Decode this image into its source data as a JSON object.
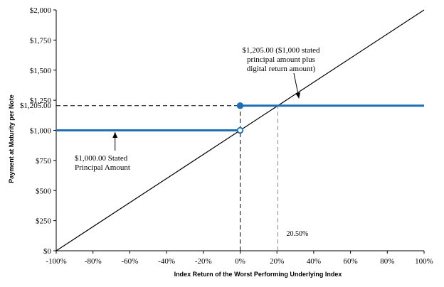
{
  "chart_data": {
    "type": "line",
    "title": "",
    "xlabel": "Index Return of the Worst Performing Underlying Index",
    "ylabel": "Payment at Maturity per Note",
    "xlim": [
      -100,
      100
    ],
    "ylim": [
      0,
      2000
    ],
    "grid": false,
    "x_ticks": [
      -100,
      -80,
      -60,
      -40,
      -20,
      0,
      20,
      40,
      60,
      80,
      100
    ],
    "x_tick_labels": [
      "-100%",
      "-80%",
      "-60%",
      "-40%",
      "-20%",
      "0%",
      "20%",
      "40%",
      "60%",
      "80%",
      "100%"
    ],
    "y_ticks": [
      0,
      250,
      500,
      750,
      1000,
      1250,
      1500,
      1750,
      2000
    ],
    "y_tick_labels": [
      "$0",
      "$250",
      "$500",
      "$750",
      "$1,000",
      "$1,250",
      "$1,500",
      "$1,750",
      "$2,000"
    ],
    "extra_y_tick": {
      "value": 1205,
      "label": "$1,205.00"
    },
    "series": [
      {
        "values": [
          {
            "x": -100,
            "y": 0
          },
          {
            "x": 100,
            "y": 2000
          }
        ],
        "color": "#000000"
      },
      {
        "values": [
          {
            "x": -100,
            "y": 1000
          },
          {
            "x": 0,
            "y": 1000
          }
        ],
        "color": "#1f6fb4"
      },
      {
        "values": [
          {
            "x": 0,
            "y": 1205
          },
          {
            "x": 100,
            "y": 1205
          }
        ],
        "color": "#1f6fb4"
      }
    ],
    "points": [
      {
        "x": 0,
        "y": 1205,
        "style": "filled",
        "color": "#1f6fb4"
      },
      {
        "x": 0,
        "y": 1000,
        "style": "open",
        "color": "#1f6fb4"
      }
    ],
    "reference_lines": [
      {
        "from": {
          "x": -100,
          "y": 1205
        },
        "to": {
          "x": 0,
          "y": 1205
        },
        "color": "#000000"
      },
      {
        "from": {
          "x": 0,
          "y": 0
        },
        "to": {
          "x": 0,
          "y": 1205
        },
        "color": "#000000"
      },
      {
        "from": {
          "x": 20.5,
          "y": 0
        },
        "to": {
          "x": 20.5,
          "y": 1205
        },
        "color": "#888888"
      }
    ],
    "annotations": {
      "digital": {
        "lines": [
          "$1,205.00 ($1,000 stated",
          "principal amount plus",
          "digital return amount)"
        ],
        "arrow_to": {
          "x": 32,
          "y": 1265
        }
      },
      "principal": {
        "lines": [
          "$1,000.00 Stated",
          "Principal Amount"
        ],
        "arrow_to": {
          "x": -68,
          "y": 985
        }
      },
      "threshold": {
        "text": "20.50%",
        "x": 20.5
      }
    }
  }
}
